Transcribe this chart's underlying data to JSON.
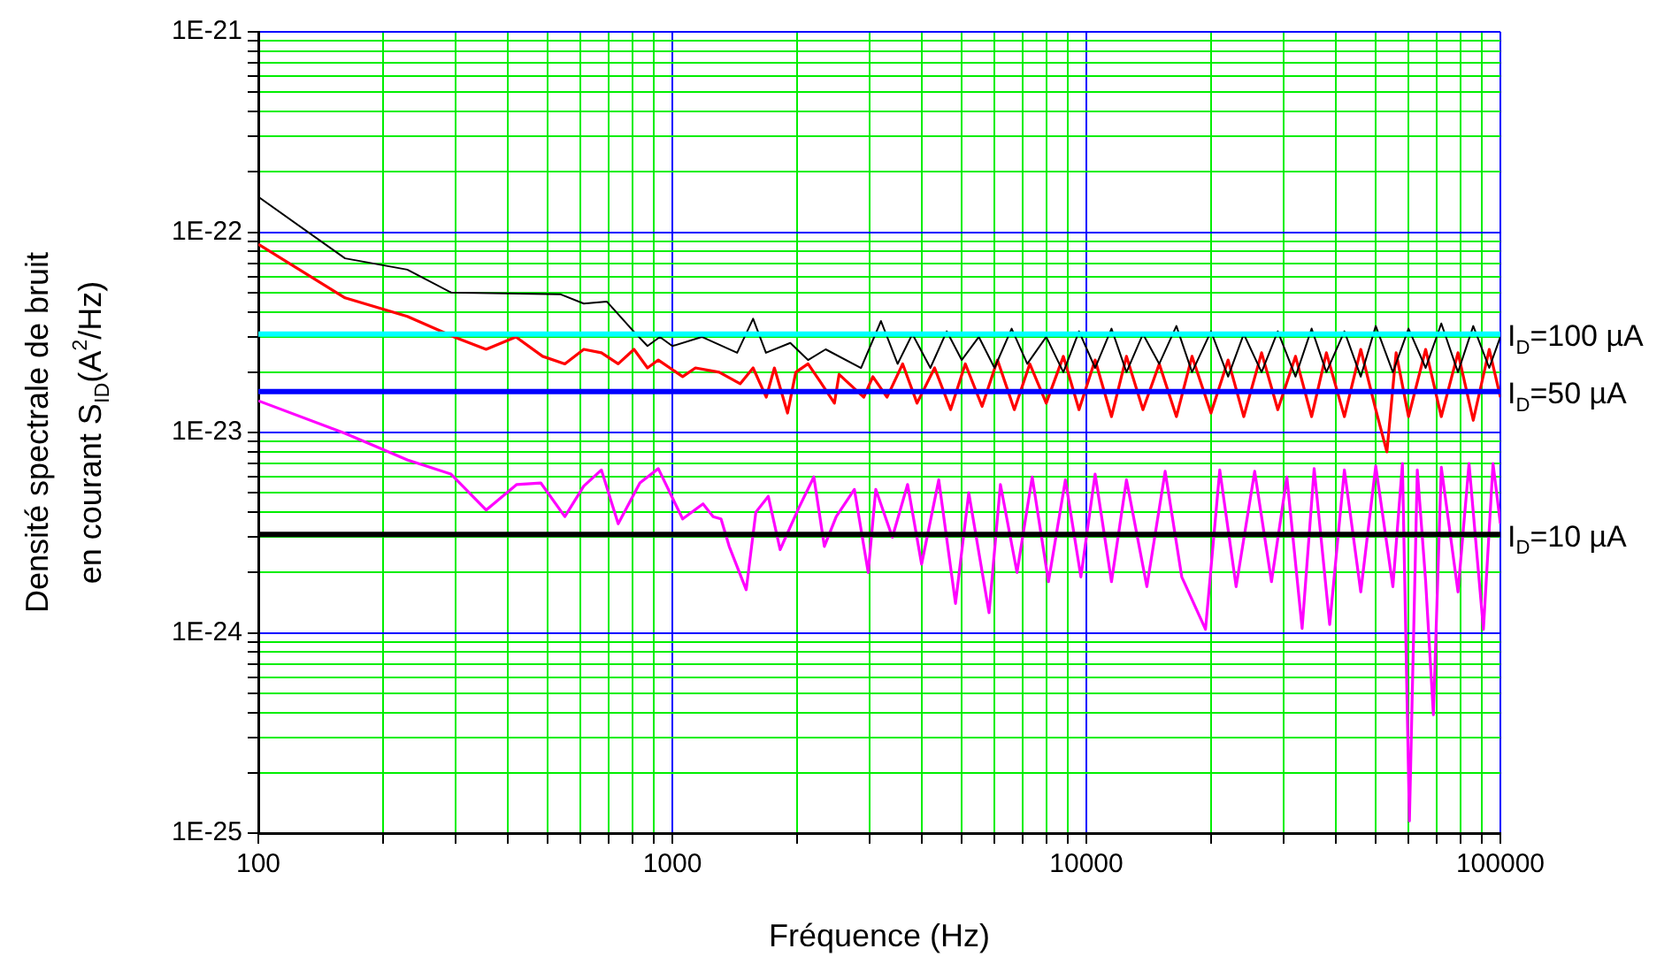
{
  "chart_data": {
    "type": "line",
    "xlabel": "Fréquence (Hz)",
    "ylabel": "Densité spectrale de bruit\nen courant S$_{ID}$(A$^{2}$/Hz)",
    "log": "xy",
    "grid": true,
    "xlim": [
      100,
      100000
    ],
    "ylim": [
      1e-25,
      1e-21
    ],
    "xticks": [
      {
        "value": 100,
        "label": "100"
      },
      {
        "value": 200,
        "label": null
      },
      {
        "value": 300,
        "label": null
      },
      {
        "value": 400,
        "label": null
      },
      {
        "value": 500,
        "label": null
      },
      {
        "value": 600,
        "label": null
      },
      {
        "value": 700,
        "label": null
      },
      {
        "value": 800,
        "label": null
      },
      {
        "value": 900,
        "label": null
      },
      {
        "value": 1000,
        "label": "1000"
      },
      {
        "value": 2000,
        "label": null
      },
      {
        "value": 3000,
        "label": null
      },
      {
        "value": 4000,
        "label": null
      },
      {
        "value": 5000,
        "label": null
      },
      {
        "value": 6000,
        "label": null
      },
      {
        "value": 7000,
        "label": null
      },
      {
        "value": 8000,
        "label": null
      },
      {
        "value": 9000,
        "label": null
      },
      {
        "value": 10000,
        "label": "10000"
      },
      {
        "value": 20000,
        "label": null
      },
      {
        "value": 30000,
        "label": null
      },
      {
        "value": 40000,
        "label": null
      },
      {
        "value": 50000,
        "label": null
      },
      {
        "value": 60000,
        "label": null
      },
      {
        "value": 70000,
        "label": null
      },
      {
        "value": 80000,
        "label": null
      },
      {
        "value": 90000,
        "label": null
      },
      {
        "value": 100000,
        "label": "100000"
      }
    ],
    "yticks": [
      {
        "value": 1e-25,
        "label": "1E-25"
      },
      {
        "value": 2e-25,
        "label": null
      },
      {
        "value": 3e-25,
        "label": null
      },
      {
        "value": 4e-25,
        "label": null
      },
      {
        "value": 5e-25,
        "label": null
      },
      {
        "value": 6e-25,
        "label": null
      },
      {
        "value": 7e-25,
        "label": null
      },
      {
        "value": 8e-25,
        "label": null
      },
      {
        "value": 9e-25,
        "label": null
      },
      {
        "value": 1e-24,
        "label": "1E-24"
      },
      {
        "value": 2e-24,
        "label": null
      },
      {
        "value": 3e-24,
        "label": null
      },
      {
        "value": 4e-24,
        "label": null
      },
      {
        "value": 5e-24,
        "label": null
      },
      {
        "value": 6e-24,
        "label": null
      },
      {
        "value": 7e-24,
        "label": null
      },
      {
        "value": 8e-24,
        "label": null
      },
      {
        "value": 9e-24,
        "label": null
      },
      {
        "value": 1e-23,
        "label": "1E-23"
      },
      {
        "value": 2e-23,
        "label": null
      },
      {
        "value": 3e-23,
        "label": null
      },
      {
        "value": 4e-23,
        "label": null
      },
      {
        "value": 5e-23,
        "label": null
      },
      {
        "value": 6e-23,
        "label": null
      },
      {
        "value": 7e-23,
        "label": null
      },
      {
        "value": 8e-23,
        "label": null
      },
      {
        "value": 9e-23,
        "label": null
      },
      {
        "value": 1e-22,
        "label": "1E-22"
      },
      {
        "value": 2e-22,
        "label": null
      },
      {
        "value": 3e-22,
        "label": null
      },
      {
        "value": 4e-22,
        "label": null
      },
      {
        "value": 5e-22,
        "label": null
      },
      {
        "value": 6e-22,
        "label": null
      },
      {
        "value": 7e-22,
        "label": null
      },
      {
        "value": 8e-22,
        "label": null
      },
      {
        "value": 9e-22,
        "label": null
      },
      {
        "value": 1e-21,
        "label": "1E-21"
      }
    ],
    "series": [
      {
        "color": "#000000",
        "x": [
          100,
          162,
          229,
          292,
          536,
          611,
          695,
          806,
          871,
          933,
          1000,
          1178,
          1434,
          1567,
          1683,
          1927,
          2127,
          2346,
          2856,
          3191,
          3500,
          3800,
          4200,
          4600,
          5000,
          5500,
          6000,
          6600,
          7200,
          8000,
          8800,
          9600,
          10500,
          11500,
          12500,
          13700,
          15000,
          16500,
          18000,
          20000,
          22000,
          24000,
          26500,
          29000,
          32000,
          35000,
          38000,
          42000,
          46000,
          50000,
          55000,
          60000,
          66000,
          72000,
          79000,
          86000,
          94000,
          100000
        ],
        "values": [
          1.5e-22,
          7.4e-23,
          6.5e-23,
          5e-23,
          4.9e-23,
          4.4e-23,
          4.5e-23,
          3.2e-23,
          2.7e-23,
          3e-23,
          2.7e-23,
          3e-23,
          2.5e-23,
          3.7e-23,
          2.5e-23,
          2.8e-23,
          2.3e-23,
          2.6e-23,
          2.1e-23,
          3.6e-23,
          2.2e-23,
          3.1e-23,
          2.1e-23,
          3.2e-23,
          2.3e-23,
          3e-23,
          2.1e-23,
          3.3e-23,
          2.2e-23,
          3e-23,
          2e-23,
          3.2e-23,
          2.1e-23,
          3.3e-23,
          2e-23,
          3.1e-23,
          2.2e-23,
          3.4e-23,
          2e-23,
          3.2e-23,
          1.9e-23,
          3.1e-23,
          2e-23,
          3.2e-23,
          1.9e-23,
          3.3e-23,
          2e-23,
          3.2e-23,
          1.9e-23,
          3.4e-23,
          2e-23,
          3.3e-23,
          2.1e-23,
          3.5e-23,
          2e-23,
          3.4e-23,
          2.1e-23,
          3e-23
        ]
      },
      {
        "color": "#ff0000",
        "x": [
          100,
          162,
          229,
          297,
          355,
          419,
          486,
          550,
          611,
          674,
          740,
          808,
          871,
          925,
          1059,
          1137,
          1298,
          1458,
          1567,
          1686,
          1764,
          1898,
          1987,
          2127,
          2273,
          2463,
          2528,
          2900,
          3050,
          3300,
          3600,
          3900,
          4300,
          4700,
          5100,
          5600,
          6100,
          6700,
          7300,
          8000,
          8800,
          9600,
          10500,
          11500,
          12500,
          13700,
          15000,
          16500,
          18000,
          20000,
          22000,
          24000,
          26500,
          29000,
          32000,
          35000,
          38000,
          42000,
          46000,
          50000,
          53200,
          56000,
          60000,
          66000,
          72000,
          79000,
          86000,
          94000,
          100000
        ],
        "values": [
          8.7e-23,
          4.7e-23,
          3.8e-23,
          3e-23,
          2.6e-23,
          3e-23,
          2.4e-23,
          2.2e-23,
          2.6e-23,
          2.5e-23,
          2.2e-23,
          2.6e-23,
          2.1e-23,
          2.3e-23,
          1.9e-23,
          2.1e-23,
          2e-23,
          1.75e-23,
          2.1e-23,
          1.5e-23,
          2.1e-23,
          1.25e-23,
          2e-23,
          2.2e-23,
          1.8e-23,
          1.4e-23,
          1.95e-23,
          1.5e-23,
          1.9e-23,
          1.5e-23,
          2.2e-23,
          1.4e-23,
          2.1e-23,
          1.3e-23,
          2.2e-23,
          1.35e-23,
          2.3e-23,
          1.3e-23,
          2.2e-23,
          1.4e-23,
          2.4e-23,
          1.3e-23,
          2.3e-23,
          1.2e-23,
          2.4e-23,
          1.3e-23,
          2.2e-23,
          1.2e-23,
          2.4e-23,
          1.25e-23,
          2.3e-23,
          1.2e-23,
          2.5e-23,
          1.3e-23,
          2.4e-23,
          1.2e-23,
          2.5e-23,
          1.2e-23,
          2.6e-23,
          1.3e-23,
          8e-24,
          2.5e-23,
          1.2e-23,
          2.6e-23,
          1.2e-23,
          2.5e-23,
          1.15e-23,
          2.6e-23,
          1.5e-23
        ]
      },
      {
        "color": "#ff00ff",
        "x": [
          100,
          162,
          229,
          292,
          355,
          421,
          481,
          550,
          611,
          674,
          740,
          835,
          925,
          1059,
          1186,
          1255,
          1311,
          1372,
          1508,
          1591,
          1705,
          1821,
          2020,
          2197,
          2329,
          2488,
          2752,
          2972,
          3100,
          3400,
          3700,
          4000,
          4400,
          4830,
          5200,
          5820,
          6200,
          6800,
          7400,
          8100,
          8900,
          9700,
          10500,
          11500,
          12500,
          14000,
          15500,
          17000,
          19400,
          21000,
          23000,
          25500,
          28000,
          30500,
          33200,
          35500,
          38700,
          42000,
          46000,
          50000,
          55000,
          58000,
          60300,
          63000,
          66000,
          68900,
          72000,
          79000,
          84000,
          91000,
          96000,
          100000
        ],
        "values": [
          1.44e-23,
          9.9e-24,
          7.3e-24,
          6.2e-24,
          4.1e-24,
          5.5e-24,
          5.6e-24,
          3.8e-24,
          5.4e-24,
          6.5e-24,
          3.5e-24,
          5.6e-24,
          6.6e-24,
          3.7e-24,
          4.4e-24,
          3.8e-24,
          3.7e-24,
          2.7e-24,
          1.64e-24,
          4e-24,
          4.8e-24,
          2.6e-24,
          4.2e-24,
          6e-24,
          2.7e-24,
          3.8e-24,
          5.2e-24,
          2e-24,
          5.2e-24,
          3e-24,
          5.5e-24,
          2.2e-24,
          5.8e-24,
          1.4e-24,
          5e-24,
          1.26e-24,
          5.5e-24,
          2e-24,
          6e-24,
          1.8e-24,
          5.8e-24,
          1.9e-24,
          6.2e-24,
          1.8e-24,
          5.8e-24,
          1.7e-24,
          6.4e-24,
          1.9e-24,
          1.04e-24,
          6.5e-24,
          1.7e-24,
          6.4e-24,
          1.8e-24,
          6e-24,
          1.05e-24,
          6.6e-24,
          1.1e-24,
          6.5e-24,
          1.6e-24,
          6.8e-24,
          1.7e-24,
          7e-24,
          1.15e-25,
          6.5e-24,
          1.8e-24,
          3.9e-25,
          6.7e-24,
          1.6e-24,
          7e-24,
          1.04e-24,
          7e-24,
          3.5e-24
        ]
      }
    ],
    "ref_lines": [
      {
        "axis": "y",
        "value": 3.1e-23,
        "color": "#00ffff"
      },
      {
        "axis": "y",
        "value": 1.6e-23,
        "color": "#0000ff"
      },
      {
        "axis": "y",
        "value": 3.1e-24,
        "color": "#000000"
      }
    ],
    "annotations": [
      "I$_{D}$=100 µA",
      "I$_{D}$=50 µA",
      "I$_{D}$=10 µA"
    ]
  }
}
